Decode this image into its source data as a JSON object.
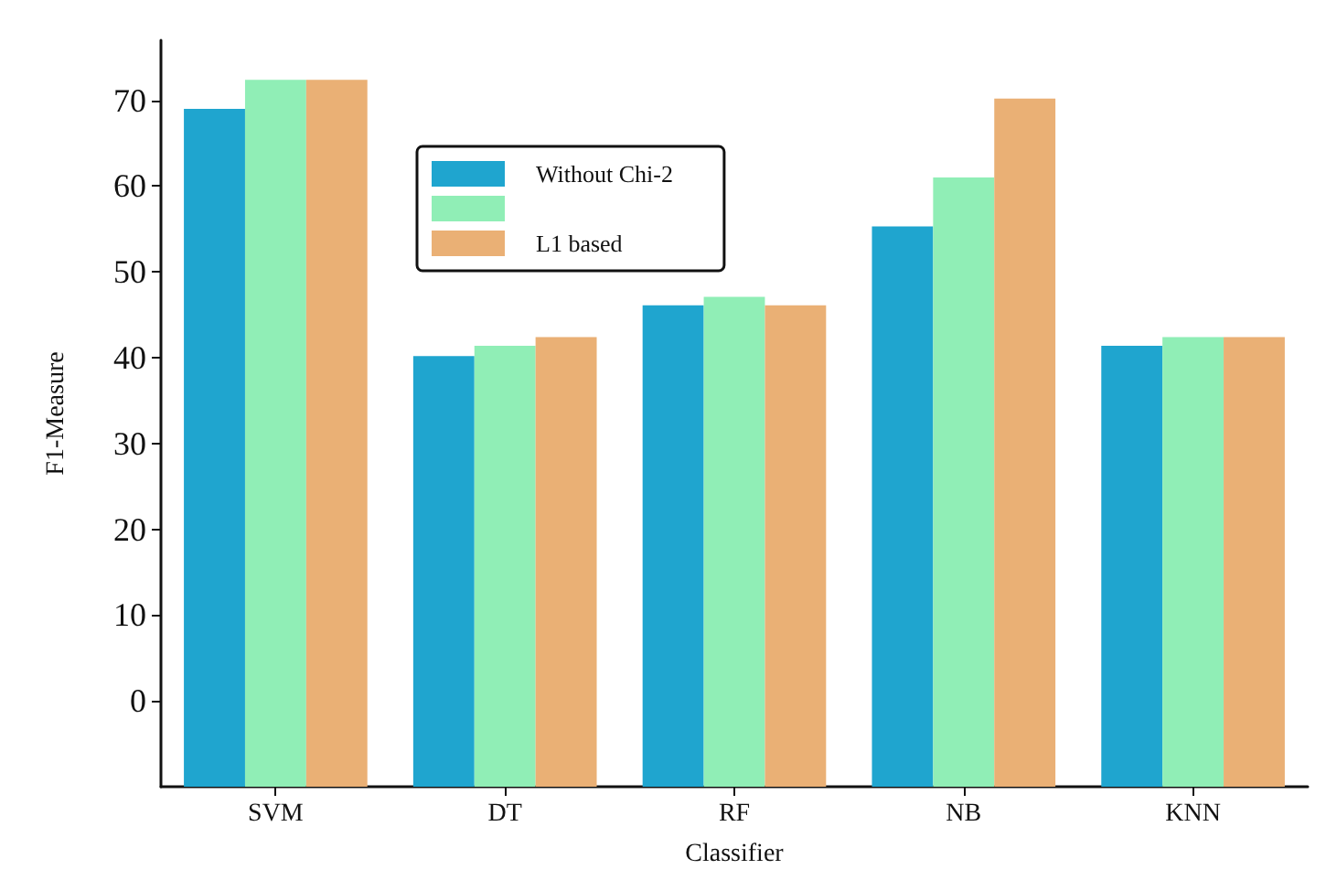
{
  "chart_data": {
    "type": "bar",
    "xlabel": "Classifier",
    "ylabel": "F1-Measure",
    "categories": [
      "SVM",
      "DT",
      "RF",
      "NB",
      "KNN"
    ],
    "series": [
      {
        "name": "Without Chi-2",
        "color": "#1fa5cf",
        "base": [
          -10,
          -10,
          -10,
          -10,
          -10
        ],
        "values": [
          79.0,
          50.2,
          56.1,
          65.3,
          51.4
        ]
      },
      {
        "color": "#90eeb6",
        "base": [
          -10,
          -10,
          -10,
          -10,
          -10
        ],
        "values": [
          82.4,
          51.4,
          57.1,
          71.0,
          52.4
        ]
      },
      {
        "name": "L1 based",
        "color": "#eab075",
        "base": [
          -10,
          -10,
          -10,
          -10,
          -10
        ],
        "values": [
          82.4,
          52.4,
          56.1,
          80.2,
          52.4
        ]
      }
    ],
    "ylim": [
      -10,
      77
    ],
    "yticks": [
      0,
      10,
      20,
      30,
      40,
      50,
      60,
      70
    ],
    "legend": "top"
  }
}
